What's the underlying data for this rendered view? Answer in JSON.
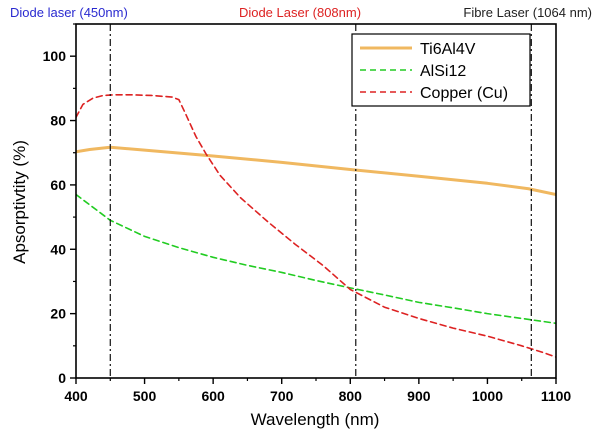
{
  "chart_data": {
    "type": "line",
    "title": "",
    "xlabel": "Wavelength (nm)",
    "ylabel": "Apsorptivtity (%)",
    "xlim": [
      400,
      1100
    ],
    "ylim": [
      0,
      110
    ],
    "xticks": [
      400,
      500,
      600,
      700,
      800,
      900,
      1000,
      1100
    ],
    "yticks": [
      0,
      20,
      40,
      60,
      80,
      100
    ],
    "grid": false,
    "legend_position": "top-right",
    "series": [
      {
        "name": "Ti6Al4V",
        "color": "#f0b860",
        "style": "solid",
        "x": [
          400,
          420,
          450,
          500,
          600,
          700,
          800,
          900,
          1000,
          1060,
          1100
        ],
        "y": [
          70.3,
          71.0,
          71.7,
          70.8,
          69.0,
          67.0,
          64.8,
          62.7,
          60.5,
          58.8,
          57.0
        ]
      },
      {
        "name": "AlSi12",
        "color": "#22cc22",
        "style": "dashed",
        "x": [
          400,
          450,
          500,
          550,
          600,
          650,
          700,
          750,
          800,
          850,
          900,
          950,
          1000,
          1050,
          1100
        ],
        "y": [
          57.0,
          49.0,
          44.0,
          40.5,
          37.5,
          35.0,
          32.8,
          30.3,
          28.0,
          25.8,
          23.5,
          21.8,
          20.0,
          18.5,
          17.0
        ]
      },
      {
        "name": "Copper (Cu)",
        "color": "#dd2222",
        "style": "dashed",
        "x": [
          400,
          410,
          425,
          440,
          455,
          480,
          510,
          540,
          550,
          560,
          575,
          590,
          610,
          640,
          680,
          720,
          760,
          800,
          850,
          900,
          950,
          1000,
          1050,
          1080,
          1100
        ],
        "y": [
          81.0,
          85.0,
          87.0,
          87.8,
          88.0,
          88.0,
          87.8,
          87.3,
          86.5,
          82.0,
          75.0,
          69.5,
          63.0,
          56.0,
          48.5,
          41.5,
          35.0,
          27.5,
          22.0,
          18.5,
          15.5,
          13.0,
          10.0,
          8.0,
          6.5
        ]
      }
    ],
    "reference_lines": [
      {
        "x": 450,
        "label": "Diode laser (450nm)",
        "label_color": "#2a2ad0"
      },
      {
        "x": 808,
        "label": "Diode Laser (808nm)",
        "label_color": "#dd2222"
      },
      {
        "x": 1064,
        "label": "Fibre Laser (1064 nm)",
        "label_color": "#222222"
      }
    ]
  }
}
